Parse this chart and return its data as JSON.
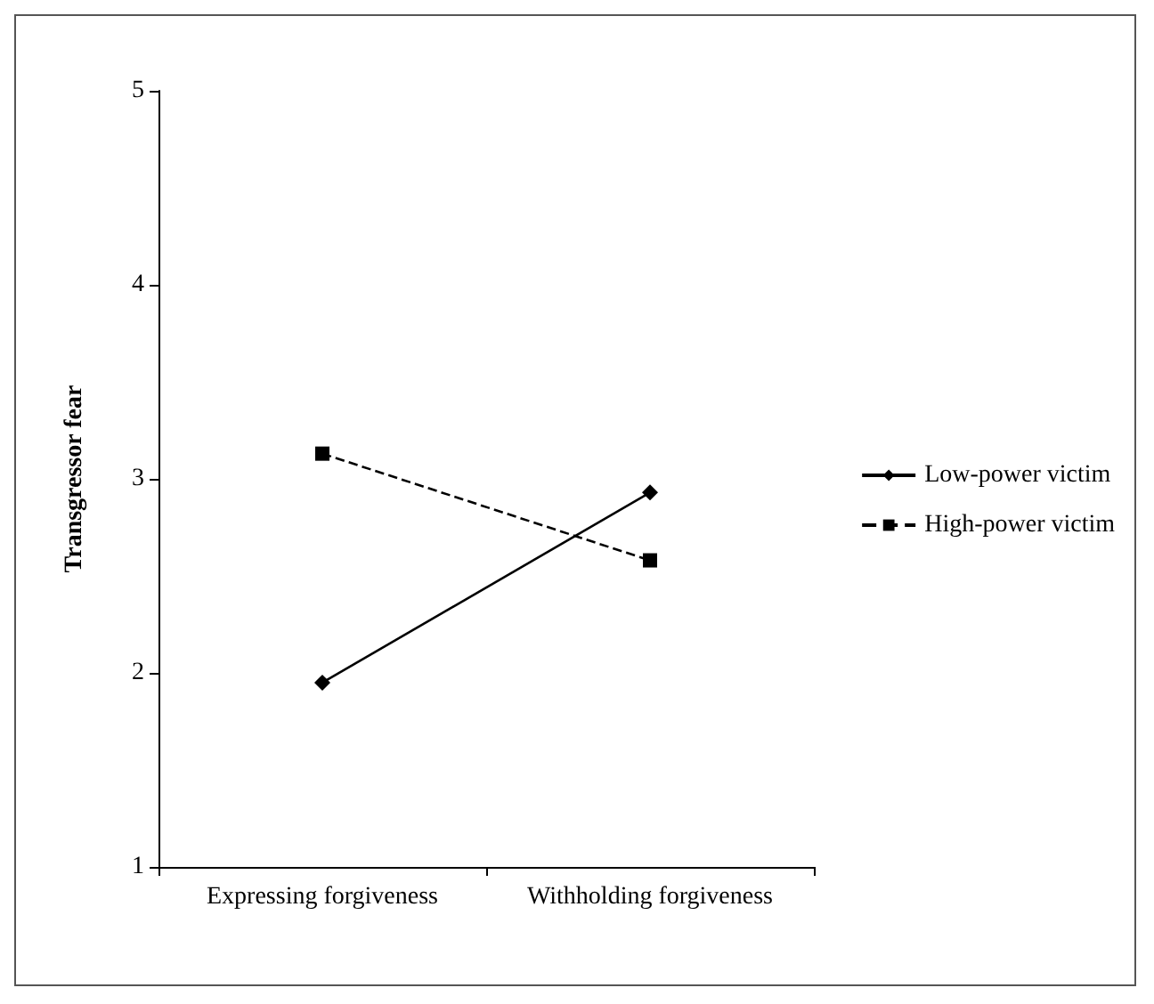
{
  "chart_data": {
    "type": "line",
    "ylabel": "Transgressor fear",
    "categories": [
      "Expressing forgiveness",
      "Withholding forgiveness"
    ],
    "series": [
      {
        "name": "Low-power victim",
        "color": "#000000",
        "values": [
          1.95,
          2.93
        ],
        "marker": "diamond",
        "line_style": "solid"
      },
      {
        "name": "High-power victim",
        "color": "#000000",
        "values": [
          3.13,
          2.58
        ],
        "marker": "square",
        "line_style": "dashed"
      }
    ],
    "ylim": [
      1,
      5
    ],
    "yticks": [
      1,
      2,
      3,
      4,
      5
    ],
    "grid": false,
    "legend": "right"
  }
}
